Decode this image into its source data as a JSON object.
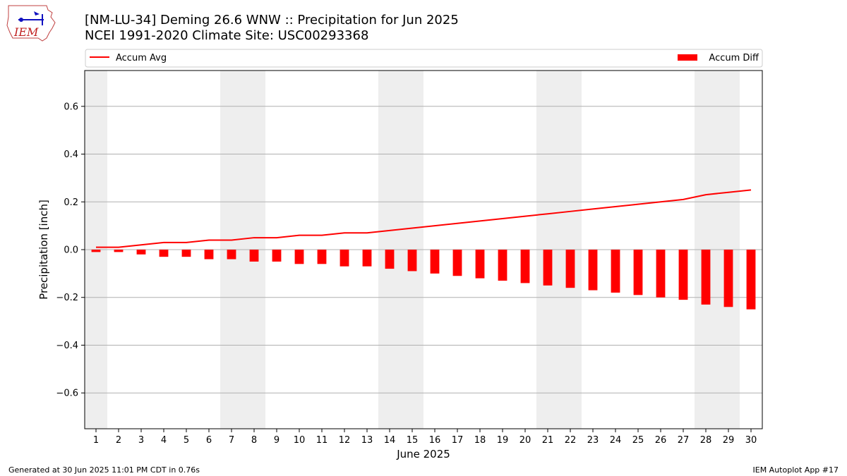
{
  "header": {
    "title_line1": "[NM-LU-34] Deming 26.6 WNW :: Precipitation for Jun 2025",
    "title_line2": "NCEI 1991-2020 Climate Site: USC00293368"
  },
  "logo": {
    "text": "IEM"
  },
  "footer": {
    "left": "Generated at 30 Jun 2025 11:01 PM CDT in 0.76s",
    "right": "IEM Autoplot App #17"
  },
  "colors": {
    "accum_avg": "#ff0000",
    "accum_diff": "#ff0000",
    "weekend_band": "#eeeeee",
    "grid": "#b0b0b0"
  },
  "chart_data": {
    "type": "bar",
    "xlabel": "June 2025",
    "ylabel": "Precipitation [inch]",
    "ylim": [
      -0.75,
      0.75
    ],
    "xlim": [
      0.5,
      30.5
    ],
    "yticks": [
      -0.6,
      -0.4,
      -0.2,
      0.0,
      0.2,
      0.4,
      0.6
    ],
    "ytick_labels": [
      "−0.6",
      "−0.4",
      "−0.2",
      "0.0",
      "0.2",
      "0.4",
      "0.6"
    ],
    "x": [
      1,
      2,
      3,
      4,
      5,
      6,
      7,
      8,
      9,
      10,
      11,
      12,
      13,
      14,
      15,
      16,
      17,
      18,
      19,
      20,
      21,
      22,
      23,
      24,
      25,
      26,
      27,
      28,
      29,
      30
    ],
    "xtick_labels": [
      "1",
      "2",
      "3",
      "4",
      "5",
      "6",
      "7",
      "8",
      "9",
      "10",
      "11",
      "12",
      "13",
      "14",
      "15",
      "16",
      "17",
      "18",
      "19",
      "20",
      "21",
      "22",
      "23",
      "24",
      "25",
      "26",
      "27",
      "28",
      "29",
      "30"
    ],
    "grid": "horizontal",
    "legend_placement": "top",
    "weekend_days": [
      1,
      7,
      8,
      14,
      15,
      21,
      22,
      28,
      29
    ],
    "series": [
      {
        "name": "Accum Avg",
        "kind": "line",
        "values": [
          0.01,
          0.01,
          0.02,
          0.03,
          0.03,
          0.04,
          0.04,
          0.05,
          0.05,
          0.06,
          0.06,
          0.07,
          0.07,
          0.08,
          0.09,
          0.1,
          0.11,
          0.12,
          0.13,
          0.14,
          0.15,
          0.16,
          0.17,
          0.18,
          0.19,
          0.2,
          0.21,
          0.23,
          0.24,
          0.25
        ]
      },
      {
        "name": "Accum Diff",
        "kind": "bar",
        "values": [
          -0.01,
          -0.01,
          -0.02,
          -0.03,
          -0.03,
          -0.04,
          -0.04,
          -0.05,
          -0.05,
          -0.06,
          -0.06,
          -0.07,
          -0.07,
          -0.08,
          -0.09,
          -0.1,
          -0.11,
          -0.12,
          -0.13,
          -0.14,
          -0.15,
          -0.16,
          -0.17,
          -0.18,
          -0.19,
          -0.2,
          -0.21,
          -0.23,
          -0.24,
          -0.25
        ]
      }
    ]
  }
}
